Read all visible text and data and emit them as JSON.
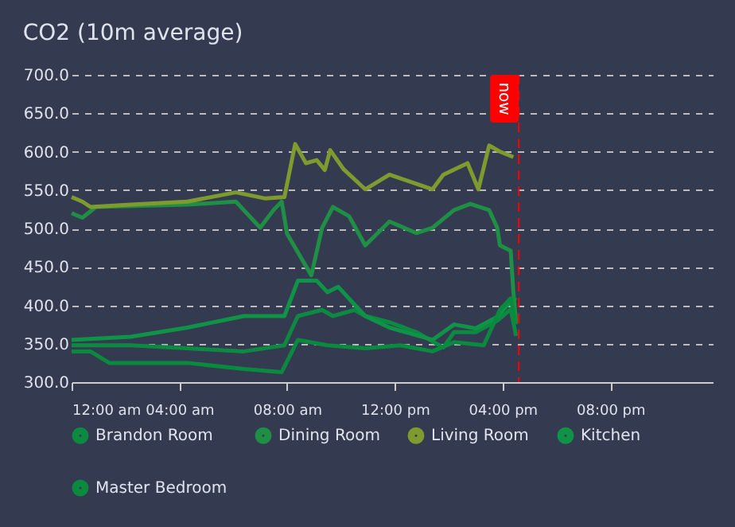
{
  "chart_data": {
    "type": "line",
    "title": "CO2 (10m average)",
    "xlim": [
      0,
      23.8
    ],
    "xticks": [
      {
        "value": 0,
        "label": "12:00 am"
      },
      {
        "value": 4,
        "label": "04:00 am"
      },
      {
        "value": 8,
        "label": "08:00 am"
      },
      {
        "value": 12,
        "label": "12:00 pm"
      },
      {
        "value": 16,
        "label": "04:00 pm"
      },
      {
        "value": 20,
        "label": "08:00 pm"
      }
    ],
    "ylim": [
      300,
      700
    ],
    "yticks": [
      {
        "value": 300,
        "label": "300.0"
      },
      {
        "value": 350,
        "label": "350.0"
      },
      {
        "value": 400,
        "label": "400.0"
      },
      {
        "value": 450,
        "label": "450.0"
      },
      {
        "value": 500,
        "label": "500.0"
      },
      {
        "value": 550,
        "label": "550.0"
      },
      {
        "value": 600,
        "label": "600.0"
      },
      {
        "value": 650,
        "label": "650.0"
      },
      {
        "value": 700,
        "label": "700.0"
      }
    ],
    "grid": "y",
    "legend": "bottom",
    "marker": "none",
    "line_style": "solid",
    "ref_lines": [
      {
        "axis": "x",
        "value": 16.6,
        "label": "now",
        "color": "#ff0000",
        "line_style": "dashed"
      }
    ],
    "series": [
      {
        "name": "Brandon Room",
        "color": "#0d8a42",
        "x": [
          0,
          2.2,
          4.3,
          6.4,
          7.9,
          8.4,
          9.3,
          9.7,
          10.5,
          10.9,
          11.8,
          12.8,
          13.8,
          14.2,
          15.0,
          15.8,
          16.3,
          16.5
        ],
        "values": [
          348,
          348,
          344,
          340,
          348,
          386,
          394,
          386,
          394,
          386,
          378,
          365,
          345,
          365,
          365,
          380,
          395,
          360
        ]
      },
      {
        "name": "Dining Room",
        "color": "#1f8f45",
        "x": [
          0,
          0.4,
          0.9,
          4.3,
          6.1,
          7.0,
          7.5,
          7.8,
          8.0,
          8.9,
          9.3,
          9.7,
          10.3,
          10.9,
          11.8,
          12.8,
          13.4,
          14.2,
          14.8,
          15.5,
          15.8,
          15.9,
          16.3,
          16.4,
          16.5
        ],
        "values": [
          520,
          514,
          528,
          531,
          535,
          501,
          524,
          535,
          493,
          439,
          501,
          528,
          516,
          478,
          509,
          494,
          501,
          524,
          532,
          524,
          501,
          478,
          471,
          417,
          378
        ]
      },
      {
        "name": "Living Room",
        "color": "#7f9a2e",
        "x": [
          0,
          0.4,
          0.7,
          2.2,
          4.3,
          6.1,
          7.2,
          7.9,
          8.3,
          8.7,
          9.1,
          9.4,
          9.6,
          10.1,
          10.9,
          11.8,
          13.4,
          13.8,
          14.7,
          15.1,
          15.5,
          15.9,
          16.4
        ],
        "values": [
          541,
          535,
          528,
          531,
          535,
          547,
          539,
          541,
          610,
          585,
          589,
          576,
          602,
          577,
          551,
          570,
          551,
          570,
          585,
          551,
          608,
          600,
          593
        ]
      },
      {
        "name": "Kitchen",
        "color": "#0f9447",
        "x": [
          0,
          2.2,
          4.3,
          6.4,
          7.9,
          8.4,
          9.1,
          9.5,
          9.9,
          10.5,
          10.9,
          11.8,
          13.4,
          14.2,
          15.0,
          15.8,
          16.3,
          16.5
        ],
        "values": [
          355,
          359,
          371,
          386,
          386,
          432,
          432,
          417,
          424,
          401,
          386,
          371,
          355,
          375,
          370,
          385,
          405,
          410
        ]
      },
      {
        "name": "Master Bedroom",
        "color": "#0a8a3f",
        "x": [
          0,
          0.7,
          1.4,
          4.3,
          6.4,
          7.8,
          8.4,
          9.5,
          10.9,
          12.2,
          13.4,
          14.2,
          15.3,
          15.9,
          16.3,
          16.5
        ],
        "values": [
          340,
          340,
          325,
          325,
          317,
          313,
          355,
          348,
          344,
          348,
          340,
          352,
          348,
          394,
          409,
          375
        ]
      }
    ]
  }
}
